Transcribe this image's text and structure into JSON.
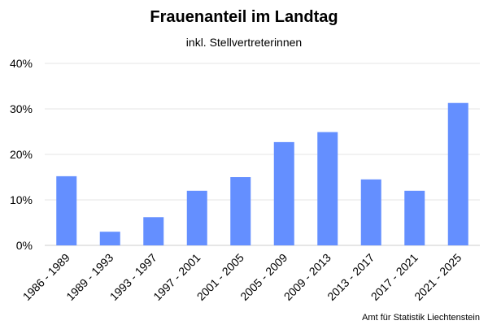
{
  "chart_data": {
    "type": "bar",
    "title": "Frauenanteil im Landtag",
    "subtitle": "inkl. Stellvertreterinnen",
    "xlabel": "",
    "ylabel": "",
    "categories": [
      "1986 - 1989",
      "1989 - 1993",
      "1993 - 1997",
      "1997 - 2001",
      "2001 - 2005",
      "2005 - 2009",
      "2009 - 2013",
      "2013 - 2017",
      "2017 - 2021",
      "2021 - 2025"
    ],
    "values": [
      15.2,
      3.0,
      6.2,
      12.0,
      15.0,
      22.7,
      24.9,
      14.5,
      12.0,
      31.3
    ],
    "ylim": [
      0,
      40
    ],
    "yticks": [
      0,
      10,
      20,
      30,
      40
    ],
    "ytick_labels": [
      "0%",
      "10%",
      "20%",
      "30%",
      "40%"
    ],
    "bar_color": "#648fff",
    "grid": true,
    "legend": "none"
  },
  "source": "Amt für Statistik Liechtenstein"
}
